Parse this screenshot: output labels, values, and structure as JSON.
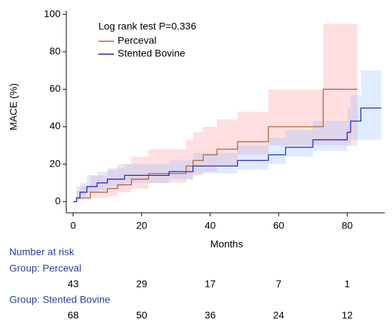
{
  "chart_data": {
    "type": "step",
    "annotation": "Log rank test P=0.336",
    "xlabel": "Months",
    "ylabel": "MACE (%)",
    "xlim": [
      -2,
      91
    ],
    "ylim": [
      -6,
      102
    ],
    "xticks": [
      0,
      20,
      40,
      60,
      80
    ],
    "yticks": [
      0,
      20,
      40,
      60,
      80,
      100
    ],
    "series": [
      {
        "name": "Perceval",
        "color": "#b0643c",
        "band_color": "rgba(255,140,140,0.28)",
        "x": [
          0,
          1,
          5,
          10,
          13,
          17,
          22,
          33,
          35,
          38,
          42,
          48,
          57,
          73,
          83
        ],
        "values": [
          0,
          2,
          5,
          7,
          9,
          12,
          15,
          19,
          22,
          25,
          28,
          32,
          40,
          60,
          60
        ],
        "upper": [
          0,
          8,
          14,
          17,
          20,
          24,
          28,
          33,
          37,
          40,
          44,
          48,
          60,
          95,
          95
        ],
        "lower": [
          0,
          0,
          1,
          2,
          3,
          5,
          7,
          10,
          12,
          14,
          16,
          19,
          25,
          30,
          30
        ]
      },
      {
        "name": "Stented Bovine",
        "color": "#2424c8",
        "band_color": "rgba(140,185,255,0.28)",
        "x": [
          0,
          1,
          2,
          4,
          7,
          10,
          15,
          28,
          35,
          48,
          57,
          62,
          70,
          80,
          81,
          84,
          90
        ],
        "values": [
          0,
          2,
          5,
          8,
          10,
          12,
          14,
          16,
          19,
          22,
          25,
          29,
          33,
          37,
          43,
          50,
          50
        ],
        "upper": [
          0,
          6,
          10,
          14,
          16,
          18,
          20,
          22,
          26,
          30,
          34,
          38,
          43,
          50,
          57,
          70,
          70
        ],
        "lower": [
          0,
          0,
          1,
          3,
          5,
          6,
          8,
          10,
          12,
          15,
          17,
          20,
          24,
          27,
          30,
          33,
          33
        ]
      }
    ],
    "risk_table": {
      "title": "Number at risk",
      "groups": [
        {
          "label": "Group: Perceval",
          "counts": [
            43,
            29,
            17,
            7,
            1
          ]
        },
        {
          "label": "Group: Stented Bovine",
          "counts": [
            68,
            50,
            36,
            24,
            12
          ]
        }
      ]
    }
  }
}
